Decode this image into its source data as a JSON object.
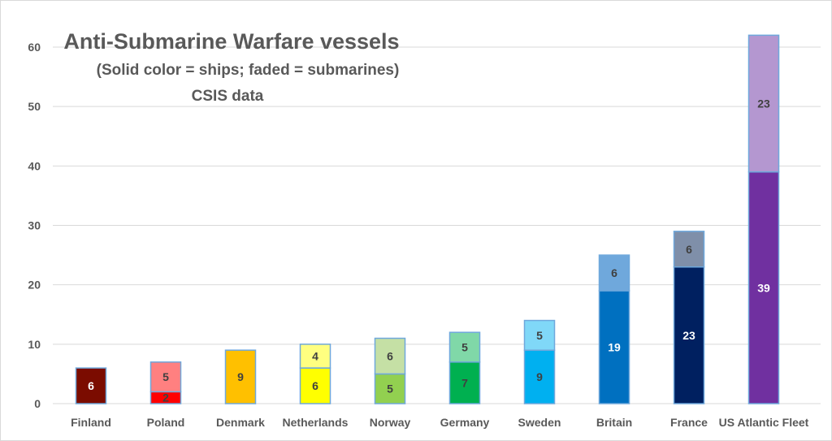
{
  "chart_data": {
    "type": "bar",
    "stacked": true,
    "title": "Anti-Submarine Warfare vessels",
    "subtitle": "(Solid color = ships; faded = submarines)",
    "source": "CSIS data",
    "categories": [
      "Finland",
      "Poland",
      "Denmark",
      "Netherlands",
      "Norway",
      "Germany",
      "Sweden",
      "Britain",
      "France",
      "US Atlantic Fleet"
    ],
    "series": [
      {
        "key": "ships",
        "values": [
          6,
          2,
          9,
          6,
          5,
          7,
          9,
          19,
          23,
          39
        ],
        "colors": [
          "#7b0c00",
          "#ff0000",
          "#ffc000",
          "#ffff00",
          "#92d050",
          "#00b050",
          "#00b0f0",
          "#0070c0",
          "#002060",
          "#7030a0"
        ],
        "label_colors": [
          "#ffffff",
          "#404040",
          "#404040",
          "#404040",
          "#404040",
          "#404040",
          "#404040",
          "#ffffff",
          "#ffffff",
          "#ffffff"
        ]
      },
      {
        "key": "submarines",
        "values": [
          0,
          5,
          0,
          4,
          6,
          5,
          5,
          6,
          6,
          23
        ],
        "colors": [
          "#c08080",
          "#ff8080",
          "#ffe080",
          "#ffff80",
          "#c5e0a5",
          "#80d8a8",
          "#80d8f8",
          "#6fa8dc",
          "#7f8fa9",
          "#b497d0"
        ],
        "label_colors": [
          "#404040",
          "#404040",
          "#404040",
          "#404040",
          "#404040",
          "#404040",
          "#404040",
          "#404040",
          "#404040",
          "#404040"
        ]
      }
    ],
    "ylim": [
      0,
      60
    ],
    "yticks": [
      0,
      10,
      20,
      30,
      40,
      50,
      60
    ],
    "grid": true,
    "bar_border_color": "#6fa8dc"
  }
}
